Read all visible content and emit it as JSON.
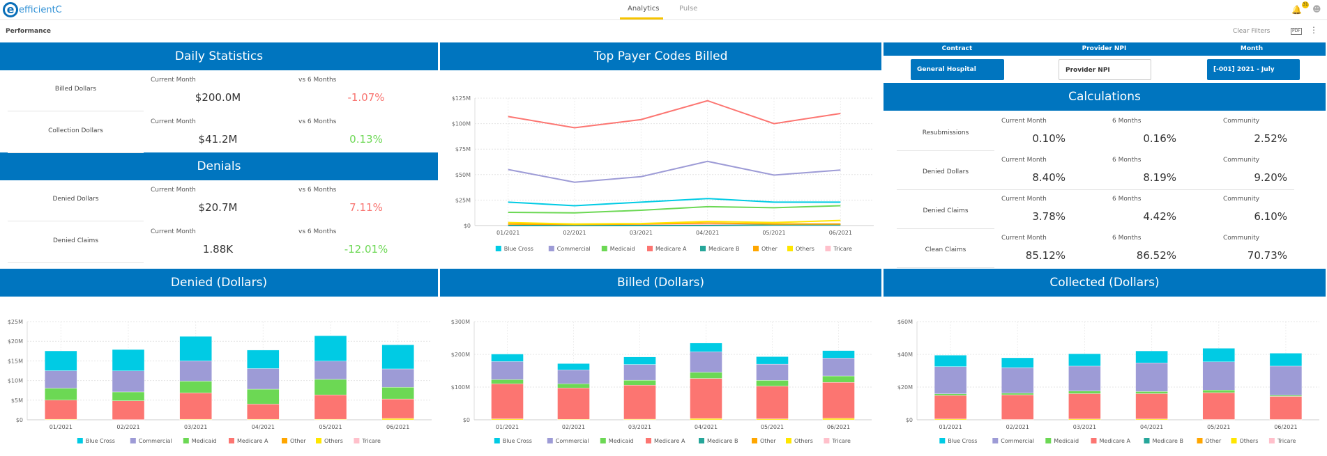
{
  "app": {
    "logo_text": "efficientC",
    "tabs": [
      {
        "label": "Analytics",
        "active": true
      },
      {
        "label": "Pulse",
        "active": false
      }
    ],
    "notification_count": "31"
  },
  "toolbar": {
    "page_title": "Performance",
    "clear_filters": "Clear Filters",
    "pdf_label": "PDF"
  },
  "daily_statistics": {
    "title": "Daily Statistics",
    "rows": [
      {
        "name": "Billed Dollars",
        "current_label": "Current Month",
        "current_value": "$200.0M",
        "compare_label": "vs 6 Months",
        "compare_value": "-1.07%",
        "compare_color": "#f8736f"
      },
      {
        "name": "Collection Dollars",
        "current_label": "Current Month",
        "current_value": "$41.2M",
        "compare_label": "vs 6 Months",
        "compare_value": "0.13%",
        "compare_color": "#6cd854"
      }
    ]
  },
  "denials": {
    "title": "Denials",
    "rows": [
      {
        "name": "Denied Dollars",
        "current_label": "Current Month",
        "current_value": "$20.7M",
        "compare_label": "vs 6 Months",
        "compare_value": "7.11%",
        "compare_color": "#f8736f"
      },
      {
        "name": "Denied Claims",
        "current_label": "Current Month",
        "current_value": "1.88K",
        "compare_label": "vs 6 Months",
        "compare_value": "-12.01%",
        "compare_color": "#6cd854"
      }
    ]
  },
  "filters": {
    "contract": {
      "label": "Contract",
      "value": "General Hospital"
    },
    "provider_npi": {
      "label": "Provider NPI",
      "placeholder": "Provider NPI"
    },
    "month": {
      "label": "Month",
      "value": "[-001] 2021 - July"
    }
  },
  "calculations": {
    "title": "Calculations",
    "col_labels": [
      "Current Month",
      "6 Months",
      "Community"
    ],
    "rows": [
      {
        "name": "Resubmissions",
        "values": [
          "0.10%",
          "0.16%",
          "2.52%"
        ]
      },
      {
        "name": "Denied Dollars",
        "values": [
          "8.40%",
          "8.19%",
          "9.20%"
        ]
      },
      {
        "name": "Denied Claims",
        "values": [
          "3.78%",
          "4.42%",
          "6.10%"
        ]
      },
      {
        "name": "Clean Claims",
        "values": [
          "85.12%",
          "86.52%",
          "70.73%"
        ]
      }
    ]
  },
  "colors": {
    "header_blue": "#0075bf",
    "Blue Cross": "#00cbe4",
    "Commercial": "#9d9bd6",
    "Medicaid": "#6cd854",
    "Medicare A": "#fc7571",
    "Medicare B": "#26a69a",
    "Other": "#ffa600",
    "Others": "#ffe600",
    "Tricare": "#ffc0cb"
  },
  "chart_data": [
    {
      "id": "top-payer",
      "title": "Top Payer Codes Billed",
      "type": "line",
      "categories": [
        "01/2021",
        "02/2021",
        "03/2021",
        "04/2021",
        "05/2021",
        "06/2021"
      ],
      "ylim": [
        0,
        125
      ],
      "yticks": [
        "$0",
        "$25M",
        "$50M",
        "$75M",
        "$100M",
        "$125M"
      ],
      "grid": true,
      "legend": "bottom",
      "series": [
        {
          "name": "Tricare",
          "values": [
            0.5,
            0.5,
            0.5,
            1,
            0.5,
            0.5
          ]
        },
        {
          "name": "Medicare B",
          "values": [
            0,
            0,
            0,
            0,
            0.5,
            0.5
          ]
        },
        {
          "name": "Other",
          "values": [
            1.5,
            1,
            1.5,
            2.5,
            1.5,
            1.5
          ]
        },
        {
          "name": "Others",
          "values": [
            3,
            1.5,
            2,
            4,
            3,
            5
          ]
        },
        {
          "name": "Medicaid",
          "values": [
            13,
            12.5,
            15,
            18.5,
            17.5,
            19.5
          ]
        },
        {
          "name": "Blue Cross",
          "values": [
            23,
            19.5,
            23,
            26.5,
            23,
            23
          ]
        },
        {
          "name": "Commercial",
          "values": [
            55,
            42.5,
            48,
            63,
            49.5,
            54.5
          ]
        },
        {
          "name": "Medicare A",
          "values": [
            107,
            96,
            104,
            122.5,
            100,
            110
          ]
        }
      ],
      "legend_items": [
        "Blue Cross",
        "Commercial",
        "Medicaid",
        "Medicare A",
        "Medicare B",
        "Other",
        "Others",
        "Tricare"
      ]
    },
    {
      "id": "denied",
      "title": "Denied (Dollars)",
      "type": "bar",
      "stacked": true,
      "categories": [
        "01/2021",
        "02/2021",
        "03/2021",
        "04/2021",
        "05/2021",
        "06/2021"
      ],
      "ylim": [
        0,
        25
      ],
      "yticks": [
        "$0",
        "$5M",
        "$10M",
        "$15M",
        "$20M",
        "$25M"
      ],
      "grid": true,
      "legend": "bottom",
      "series": [
        {
          "name": "Others",
          "values": [
            0.15,
            0.05,
            0.15,
            0.15,
            0.15,
            0.35
          ]
        },
        {
          "name": "Medicare A",
          "values": [
            4.85,
            4.8,
            6.7,
            3.85,
            6.2,
            4.95
          ]
        },
        {
          "name": "Medicaid",
          "values": [
            3.05,
            2.25,
            3.0,
            3.8,
            3.95,
            3.0
          ]
        },
        {
          "name": "Commercial",
          "values": [
            4.45,
            5.35,
            5.15,
            5.25,
            4.65,
            4.65
          ]
        },
        {
          "name": "Blue Cross",
          "values": [
            5.05,
            5.45,
            6.25,
            4.7,
            6.45,
            6.15
          ]
        }
      ],
      "legend_items": [
        "Blue Cross",
        "Commercial",
        "Medicaid",
        "Medicare A",
        "Other",
        "Others",
        "Tricare"
      ]
    },
    {
      "id": "billed",
      "title": "Billed (Dollars)",
      "type": "bar",
      "stacked": true,
      "categories": [
        "01/2021",
        "02/2021",
        "03/2021",
        "04/2021",
        "05/2021",
        "06/2021"
      ],
      "ylim": [
        0,
        300
      ],
      "yticks": [
        "$0",
        "$100M",
        "$200M",
        "$300M"
      ],
      "grid": true,
      "legend": "bottom",
      "series": [
        {
          "name": "Others",
          "values": [
            3,
            1.5,
            2,
            4,
            3,
            4.5
          ]
        },
        {
          "name": "Medicare A",
          "values": [
            107,
            96,
            104,
            122.5,
            100,
            110
          ]
        },
        {
          "name": "Medicaid",
          "values": [
            13,
            12.5,
            15,
            18.5,
            17.5,
            19.5
          ]
        },
        {
          "name": "Commercial",
          "values": [
            55,
            42.5,
            48,
            63,
            49.5,
            54.5
          ]
        },
        {
          "name": "Blue Cross",
          "values": [
            23,
            19.5,
            23,
            26.5,
            23,
            23
          ]
        }
      ],
      "legend_items": [
        "Blue Cross",
        "Commercial",
        "Medicaid",
        "Medicare A",
        "Medicare B",
        "Other",
        "Others",
        "Tricare"
      ]
    },
    {
      "id": "collected",
      "title": "Collected (Dollars)",
      "type": "bar",
      "stacked": true,
      "categories": [
        "01/2021",
        "02/2021",
        "03/2021",
        "04/2021",
        "05/2021",
        "06/2021"
      ],
      "ylim": [
        0,
        60
      ],
      "yticks": [
        "$0",
        "$20M",
        "$40M",
        "$60M"
      ],
      "grid": true,
      "legend": "bottom",
      "series": [
        {
          "name": "Others",
          "values": [
            0.5,
            0.2,
            0.5,
            0.5,
            0.2,
            0.2
          ]
        },
        {
          "name": "Medicare A",
          "values": [
            14.4,
            15.1,
            15.5,
            15.5,
            16.4,
            14.1
          ]
        },
        {
          "name": "Medicaid",
          "values": [
            1.0,
            1.0,
            1.6,
            1.3,
            1.6,
            0.7
          ]
        },
        {
          "name": "Commercial",
          "values": [
            16.6,
            15.6,
            15.2,
            17.5,
            17.2,
            17.8
          ]
        },
        {
          "name": "Blue Cross",
          "values": [
            7.0,
            6.0,
            7.6,
            7.3,
            8.3,
            7.9
          ]
        }
      ],
      "legend_items": [
        "Blue Cross",
        "Commercial",
        "Medicaid",
        "Medicare A",
        "Medicare B",
        "Other",
        "Others",
        "Tricare"
      ]
    }
  ]
}
